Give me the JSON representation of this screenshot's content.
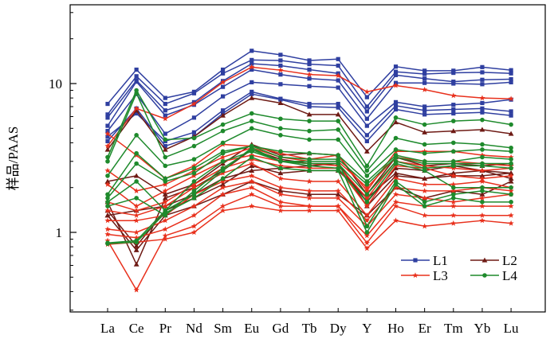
{
  "chart_data": {
    "type": "line",
    "title": "",
    "xlabel": "",
    "ylabel": "样品/PAAS",
    "y_scale": "log",
    "ylim": [
      0.33,
      32
    ],
    "y_ticks": [
      {
        "value": 1,
        "label": "1"
      },
      {
        "value": 10,
        "label": "10"
      }
    ],
    "categories": [
      "La",
      "Ce",
      "Pr",
      "Nd",
      "Sm",
      "Eu",
      "Gd",
      "Tb",
      "Dy",
      "Y",
      "Ho",
      "Er",
      "Tm",
      "Yb",
      "Lu"
    ],
    "grid": false,
    "legend": {
      "position": "bottom-right",
      "columns": 2
    },
    "groups": [
      {
        "name": "L1",
        "color": "#2f3fa0",
        "marker": "square",
        "series": [
          [
            7.3,
            12.4,
            8.0,
            8.8,
            12.4,
            16.6,
            15.6,
            14.3,
            14.6,
            8.1,
            13.0,
            12.2,
            12.2,
            12.9,
            12.3
          ],
          [
            6.2,
            11.2,
            7.3,
            8.6,
            11.7,
            14.4,
            14.3,
            13.5,
            13.2,
            7.0,
            12.0,
            11.6,
            11.8,
            11.9,
            11.7
          ],
          [
            5.9,
            10.5,
            6.6,
            7.5,
            10.4,
            13.6,
            13.2,
            12.4,
            11.7,
            6.5,
            11.4,
            10.8,
            10.3,
            10.6,
            10.7
          ],
          [
            5.2,
            10.3,
            6.1,
            7.2,
            9.5,
            12.4,
            11.5,
            10.8,
            10.5,
            5.8,
            10.1,
            10.1,
            10.0,
            9.9,
            10.2
          ],
          [
            4.8,
            8.5,
            4.6,
            5.9,
            8.2,
            10.2,
            9.9,
            9.6,
            9.4,
            5.2,
            7.5,
            7.0,
            7.2,
            7.4,
            7.8
          ],
          [
            4.4,
            6.3,
            4.1,
            4.7,
            6.6,
            8.8,
            7.9,
            7.3,
            7.3,
            4.5,
            7.1,
            6.6,
            6.7,
            6.8,
            6.5
          ],
          [
            4.1,
            6.8,
            3.8,
            4.4,
            6.3,
            8.5,
            7.8,
            7.0,
            6.9,
            4.1,
            6.7,
            6.2,
            6.3,
            6.4,
            6.1
          ]
        ]
      },
      {
        "name": "L2",
        "color": "#6e1a14",
        "marker": "triangle",
        "series": [
          [
            3.6,
            6.6,
            3.6,
            4.4,
            6.1,
            8.0,
            7.4,
            6.2,
            6.2,
            3.5,
            5.5,
            4.7,
            4.8,
            4.9,
            4.6
          ],
          [
            2.2,
            2.4,
            1.8,
            2.1,
            2.9,
            3.9,
            3.3,
            3.4,
            3.3,
            1.8,
            3.2,
            2.8,
            2.9,
            2.8,
            2.9
          ],
          [
            1.6,
            0.61,
            1.7,
            2.0,
            2.6,
            3.6,
            3.1,
            2.9,
            2.9,
            1.6,
            2.7,
            2.6,
            2.8,
            2.6,
            2.5
          ],
          [
            1.3,
            1.4,
            1.5,
            1.8,
            2.3,
            2.6,
            2.7,
            2.8,
            2.9,
            1.5,
            2.4,
            2.3,
            2.5,
            2.6,
            2.3
          ],
          [
            1.4,
            0.81,
            1.4,
            1.7,
            2.1,
            2.8,
            2.5,
            2.6,
            2.6,
            1.7,
            2.5,
            2.3,
            2.4,
            2.4,
            2.5
          ],
          [
            1.3,
            0.76,
            1.3,
            1.5,
            1.8,
            2.2,
            1.9,
            1.8,
            1.8,
            1.3,
            2.0,
            1.7,
            1.9,
            1.8,
            2.2
          ]
        ]
      },
      {
        "name": "L3",
        "color": "#e8301c",
        "marker": "star",
        "series": [
          [
            3.8,
            6.8,
            5.8,
            7.3,
            10.2,
            12.9,
            12.3,
            11.5,
            11.3,
            8.8,
            9.7,
            9.1,
            8.3,
            8.0,
            7.9
          ],
          [
            4.6,
            3.3,
            2.3,
            2.8,
            3.9,
            3.8,
            3.4,
            3.1,
            3.3,
            1.9,
            3.5,
            3.5,
            3.5,
            3.3,
            3.2
          ],
          [
            2.6,
            1.9,
            2.1,
            2.6,
            3.2,
            3.7,
            3.2,
            3.0,
            3.0,
            2.0,
            3.2,
            3.0,
            3.0,
            2.9,
            2.8
          ],
          [
            2.1,
            1.5,
            1.9,
            2.4,
            3.0,
            3.3,
            3.0,
            2.9,
            2.8,
            1.7,
            3.0,
            2.8,
            2.7,
            2.6,
            2.7
          ],
          [
            1.6,
            1.4,
            1.6,
            2.1,
            2.7,
            3.1,
            2.8,
            2.7,
            2.7,
            1.5,
            2.8,
            2.7,
            2.4,
            2.3,
            2.4
          ],
          [
            1.4,
            1.3,
            1.5,
            2.0,
            2.5,
            2.9,
            2.3,
            2.2,
            2.2,
            1.3,
            2.3,
            2.1,
            2.1,
            2.2,
            2.0
          ],
          [
            1.2,
            1.2,
            1.3,
            1.8,
            2.2,
            2.4,
            2.0,
            1.9,
            1.9,
            1.2,
            2.0,
            1.9,
            1.9,
            2.0,
            1.9
          ],
          [
            1.05,
            1.0,
            1.2,
            1.5,
            2.0,
            2.2,
            1.8,
            1.7,
            1.7,
            1.1,
            1.8,
            1.7,
            1.6,
            1.7,
            1.8
          ],
          [
            0.97,
            0.92,
            1.05,
            1.3,
            1.8,
            2.0,
            1.6,
            1.5,
            1.5,
            0.95,
            1.6,
            1.5,
            1.5,
            1.5,
            1.5
          ],
          [
            0.88,
            0.41,
            0.95,
            1.1,
            1.5,
            1.8,
            1.5,
            1.5,
            1.5,
            0.85,
            1.5,
            1.3,
            1.3,
            1.3,
            1.3
          ],
          [
            0.83,
            0.86,
            0.9,
            1.0,
            1.4,
            1.5,
            1.4,
            1.4,
            1.4,
            0.78,
            1.2,
            1.1,
            1.15,
            1.2,
            1.15
          ]
        ]
      },
      {
        "name": "L4",
        "color": "#1e8a2c",
        "marker": "circle",
        "series": [
          [
            3.2,
            9.0,
            4.2,
            4.3,
            5.3,
            6.3,
            5.8,
            5.6,
            5.6,
            2.8,
            5.9,
            5.3,
            5.6,
            5.7,
            5.3
          ],
          [
            3.0,
            8.6,
            3.2,
            3.8,
            4.8,
            5.6,
            5.0,
            4.8,
            4.9,
            2.6,
            4.3,
            3.9,
            4.0,
            3.9,
            3.7
          ],
          [
            2.4,
            4.5,
            2.8,
            3.1,
            4.0,
            5.0,
            4.5,
            4.2,
            4.2,
            2.4,
            3.6,
            3.4,
            3.5,
            3.6,
            3.5
          ],
          [
            1.8,
            3.4,
            2.3,
            2.7,
            3.5,
            3.8,
            3.5,
            3.4,
            3.3,
            2.2,
            3.3,
            3.0,
            3.0,
            3.2,
            3.1
          ],
          [
            1.7,
            2.9,
            2.2,
            2.5,
            3.4,
            3.8,
            3.2,
            3.1,
            3.1,
            2.1,
            3.2,
            2.9,
            2.9,
            2.9,
            2.9
          ],
          [
            1.6,
            2.2,
            1.4,
            2.2,
            3.0,
            3.5,
            3.0,
            2.9,
            2.9,
            1.8,
            3.0,
            2.7,
            2.8,
            2.8,
            2.7
          ],
          [
            1.5,
            1.7,
            1.3,
            1.9,
            2.7,
            3.6,
            3.0,
            2.8,
            2.7,
            1.6,
            2.9,
            2.6,
            2.0,
            2.0,
            2.0
          ],
          [
            0.85,
            0.88,
            1.4,
            1.8,
            2.6,
            3.7,
            3.0,
            3.0,
            3.0,
            1.1,
            2.2,
            1.6,
            1.8,
            1.9,
            1.8
          ],
          [
            0.84,
            0.86,
            1.35,
            1.7,
            2.3,
            3.2,
            2.7,
            2.6,
            2.6,
            1.0,
            2.1,
            1.5,
            1.7,
            1.6,
            1.6
          ]
        ]
      }
    ]
  }
}
